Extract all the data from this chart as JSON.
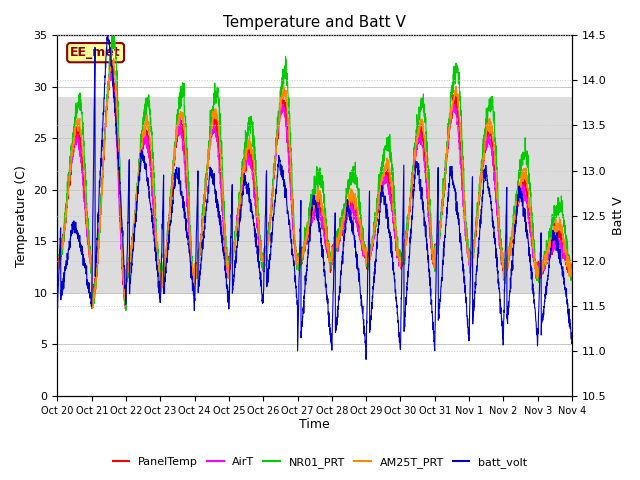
{
  "title": "Temperature and Batt V",
  "xlabel": "Time",
  "ylabel_left": "Temperature (C)",
  "ylabel_right": "Batt V",
  "annotation": "EE_met",
  "ylim_left": [
    0,
    35
  ],
  "ylim_right": [
    10.5,
    14.5
  ],
  "x_tick_labels": [
    "Oct 20",
    "Oct 21",
    "Oct 22",
    "Oct 23",
    "Oct 24",
    "Oct 25",
    "Oct 26",
    "Oct 27",
    "Oct 28",
    "Oct 29",
    "Oct 30",
    "Oct 31",
    "Nov 1",
    "Nov 2",
    "Nov 3",
    "Nov 4"
  ],
  "shading_ylo": 10,
  "shading_yhi": 29,
  "legend": [
    {
      "label": "PanelTemp",
      "color": "#ff0000"
    },
    {
      "label": "AirT",
      "color": "#ff00ff"
    },
    {
      "label": "NR01_PRT",
      "color": "#00cc00"
    },
    {
      "label": "AM25T_PRT",
      "color": "#ff8800"
    },
    {
      "label": "batt_volt",
      "color": "#0000cc"
    }
  ],
  "background_color": "#ffffff",
  "grid_color": "#c8c8c8",
  "shading_color": "#dcdcdc",
  "peak_temps": [
    27,
    33,
    27,
    28,
    28,
    25,
    30,
    20,
    20,
    23,
    27,
    30,
    27,
    22,
    17,
    12
  ],
  "trough_temps": [
    13,
    9,
    12,
    11,
    12,
    13,
    13,
    13,
    14,
    13,
    13,
    14,
    13,
    12,
    12,
    12
  ],
  "peak_batt": [
    12.4,
    14.5,
    13.2,
    13.0,
    13.0,
    12.9,
    13.1,
    12.7,
    12.6,
    12.8,
    13.1,
    13.0,
    13.0,
    12.8,
    12.3,
    12.1
  ],
  "trough_batt": [
    11.5,
    11.5,
    11.5,
    11.5,
    11.5,
    11.5,
    11.5,
    11.0,
    11.0,
    11.0,
    11.0,
    11.1,
    11.1,
    11.1,
    11.1,
    11.1
  ],
  "n_points": 3000,
  "t_days": 15
}
